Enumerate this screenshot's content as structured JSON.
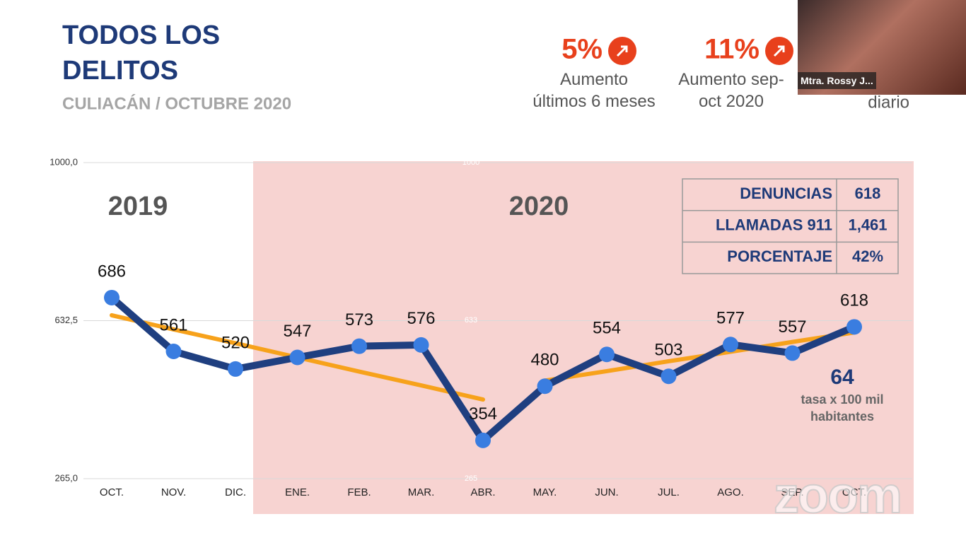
{
  "chart_data": {
    "type": "line",
    "title": "TODOS LOS DELITOS",
    "subtitle": "CULIACÁN / OCTUBRE 2020",
    "categories": [
      "OCT.",
      "NOV.",
      "DIC.",
      "ENE.",
      "FEB.",
      "MAR.",
      "ABR.",
      "MAY.",
      "JUN.",
      "JUL.",
      "AGO.",
      "SEP.",
      "OCT."
    ],
    "series": [
      {
        "color": "#1f3f80",
        "marker_color": "#3a7de0",
        "values": [
          686,
          561,
          520,
          547,
          573,
          576,
          354,
          480,
          554,
          503,
          577,
          557,
          618
        ]
      },
      {
        "color": "#f7a21b",
        "values": [
          645,
          612,
          580,
          547,
          514,
          482,
          449,
          null,
          null,
          null,
          null,
          null,
          null
        ]
      },
      {
        "color": "#f7a21b",
        "values": [
          null,
          null,
          null,
          null,
          null,
          null,
          null,
          493,
          515,
          538,
          560,
          583,
          605
        ]
      }
    ],
    "ylim": [
      265,
      1000
    ],
    "yticks": [
      {
        "value": 265,
        "label": "265,0"
      },
      {
        "value": 632.5,
        "label": "632,5"
      },
      {
        "value": 1000,
        "label": "1000,0"
      }
    ],
    "y2lim": [
      265,
      1000
    ],
    "y2ticks": [
      265,
      633,
      1000
    ],
    "grid": true,
    "periods": [
      "2019",
      "2020"
    ],
    "highlight_color": "#f7d3d1"
  },
  "kpis": [
    {
      "value": "5%",
      "label": "Aumento últimos 6 meses"
    },
    {
      "value": "11%",
      "label": "Aumento sep-oct 2020"
    },
    {
      "label": "diario"
    }
  ],
  "table": {
    "rows": [
      [
        "DENUNCIAS",
        "618"
      ],
      [
        "LLAMADAS 911",
        "1,461"
      ],
      [
        "PORCENTAJE",
        "42%"
      ]
    ]
  },
  "rate": {
    "value": "64",
    "label": "tasa x 100 mil habitantes"
  },
  "video": {
    "name": "Mtra. Rossy J..."
  },
  "watermark": "zoom"
}
